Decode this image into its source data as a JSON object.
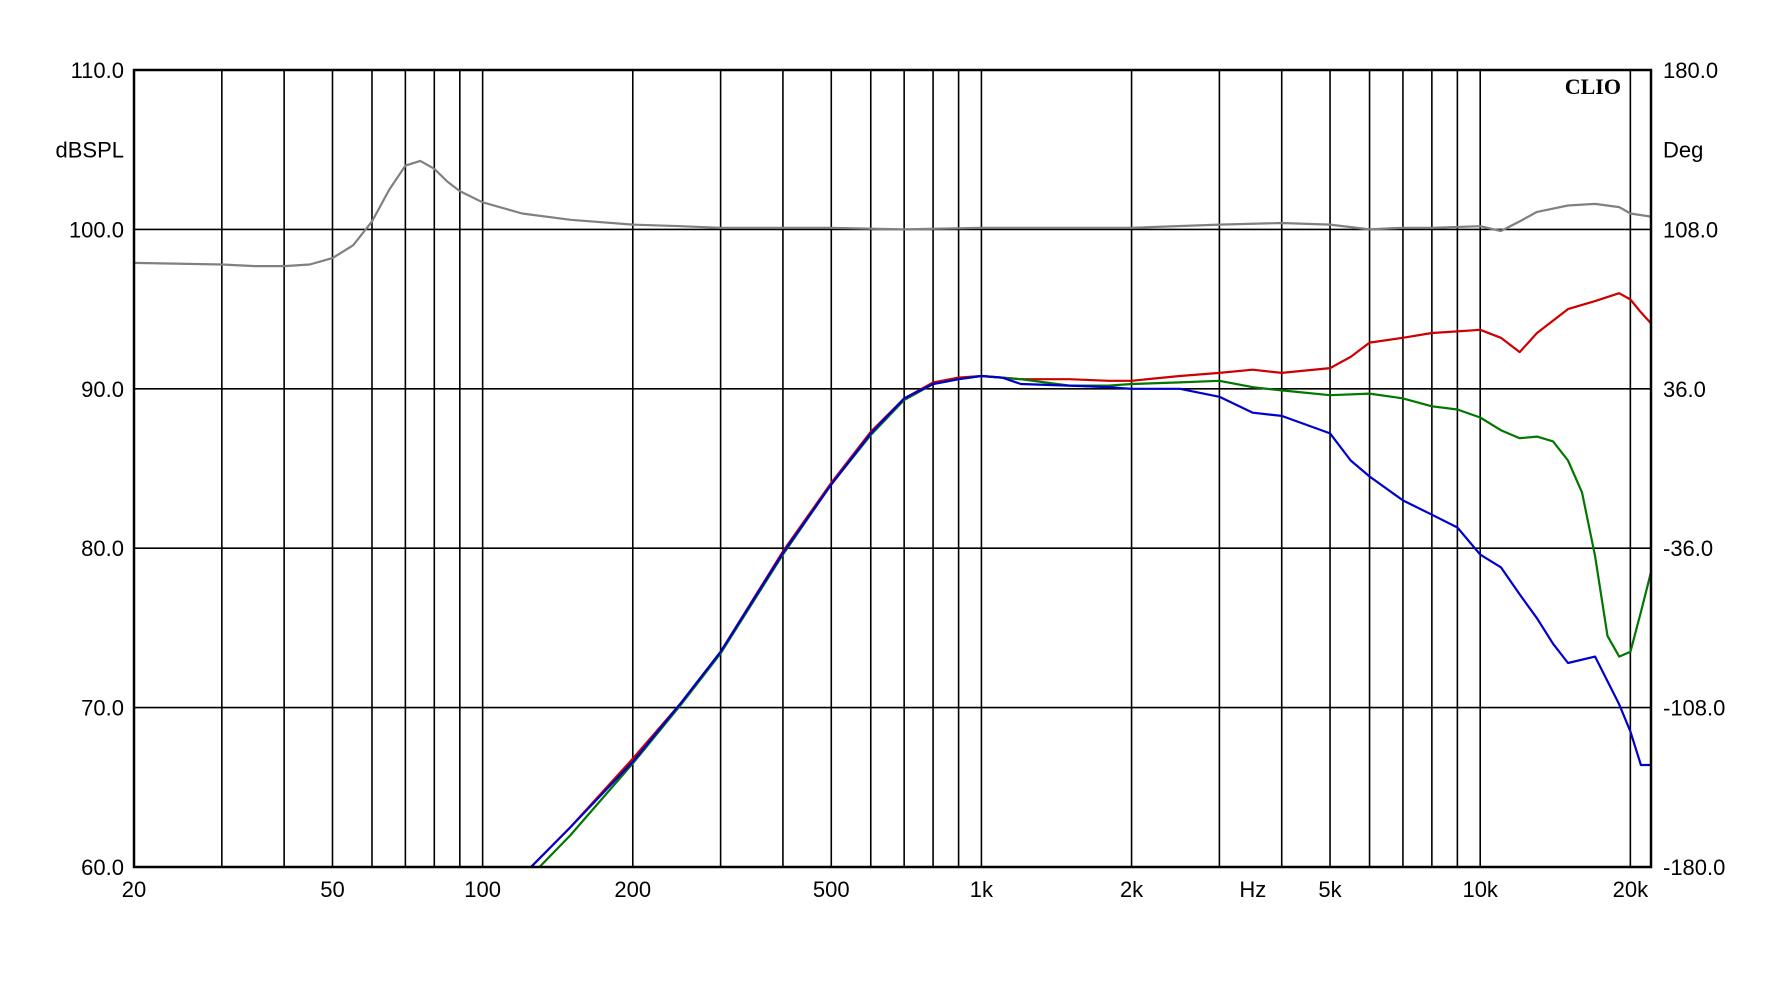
{
  "chart_data": {
    "type": "line",
    "brand": "CLIO",
    "x_scale": "log",
    "xlim": [
      20,
      22000
    ],
    "x_unit": "Hz",
    "xticks": [
      {
        "value": 20,
        "label": "20"
      },
      {
        "value": 50,
        "label": "50"
      },
      {
        "value": 100,
        "label": "100"
      },
      {
        "value": 200,
        "label": "200"
      },
      {
        "value": 500,
        "label": "500"
      },
      {
        "value": 1000,
        "label": "1k"
      },
      {
        "value": 2000,
        "label": "2k"
      },
      {
        "value": 5000,
        "label": "5k"
      },
      {
        "value": 10000,
        "label": "10k"
      },
      {
        "value": 20000,
        "label": "20k"
      }
    ],
    "x_gridlines": [
      20,
      30,
      40,
      50,
      60,
      70,
      80,
      90,
      100,
      200,
      300,
      400,
      500,
      600,
      700,
      800,
      900,
      1000,
      2000,
      3000,
      4000,
      5000,
      6000,
      7000,
      8000,
      9000,
      10000,
      20000
    ],
    "ylim": [
      60,
      110
    ],
    "y_unit": "dBSPL",
    "yticks": [
      {
        "value": 110,
        "label": "110.0"
      },
      {
        "value": 100,
        "label": "100.0"
      },
      {
        "value": 90,
        "label": "90.0"
      },
      {
        "value": 80,
        "label": "80.0"
      },
      {
        "value": 70,
        "label": "70.0"
      },
      {
        "value": 60,
        "label": "60.0"
      }
    ],
    "y2lim": [
      -180,
      180
    ],
    "y2_unit": "Deg",
    "y2ticks": [
      {
        "value": 180,
        "label": "180.0"
      },
      {
        "value": 108,
        "label": "108.0"
      },
      {
        "value": 36,
        "label": "36.0"
      },
      {
        "value": -36,
        "label": "-36.0"
      },
      {
        "value": -108,
        "label": "-108.0"
      },
      {
        "value": -180,
        "label": "-180.0"
      }
    ],
    "grid": true,
    "series": [
      {
        "color": "#808080",
        "x": [
          20,
          30,
          35,
          40,
          45,
          50,
          55,
          60,
          65,
          70,
          75,
          80,
          85,
          90,
          100,
          120,
          150,
          200,
          250,
          300,
          500,
          700,
          1000,
          1500,
          2000,
          3000,
          4000,
          5000,
          6000,
          7000,
          8000,
          10000,
          11000,
          12000,
          13000,
          15000,
          17000,
          19000,
          20000,
          22000
        ],
        "y": [
          97.9,
          97.8,
          97.7,
          97.7,
          97.8,
          98.2,
          99.0,
          100.5,
          102.5,
          104.0,
          104.3,
          103.8,
          103.0,
          102.4,
          101.7,
          101.0,
          100.6,
          100.3,
          100.2,
          100.1,
          100.1,
          100.0,
          100.1,
          100.1,
          100.1,
          100.3,
          100.4,
          100.3,
          100.0,
          100.1,
          100.1,
          100.2,
          99.9,
          100.5,
          101.1,
          101.5,
          101.6,
          101.4,
          101.0,
          100.8
        ]
      },
      {
        "color": "#cc0000",
        "x": [
          125,
          150,
          200,
          250,
          300,
          400,
          500,
          600,
          700,
          800,
          900,
          1000,
          1200,
          1500,
          1800,
          2000,
          2500,
          3000,
          3500,
          4000,
          5000,
          5500,
          6000,
          7000,
          8000,
          9000,
          10000,
          11000,
          12000,
          13000,
          15000,
          17000,
          19000,
          20000,
          21000,
          22000
        ],
        "y": [
          60.0,
          62.5,
          66.8,
          70.3,
          73.5,
          79.8,
          84.1,
          87.3,
          89.4,
          90.4,
          90.7,
          90.8,
          90.6,
          90.6,
          90.5,
          90.5,
          90.8,
          91.0,
          91.2,
          91.0,
          91.3,
          92.0,
          92.9,
          93.2,
          93.5,
          93.6,
          93.7,
          93.2,
          92.3,
          93.5,
          95.0,
          95.5,
          96.0,
          95.6,
          94.8,
          94.1
        ]
      },
      {
        "color": "#007700",
        "x": [
          130,
          150,
          200,
          250,
          300,
          400,
          500,
          600,
          700,
          800,
          900,
          1000,
          1200,
          1500,
          1800,
          2000,
          2500,
          3000,
          3500,
          4000,
          5000,
          6000,
          7000,
          8000,
          9000,
          10000,
          11000,
          12000,
          13000,
          14000,
          15000,
          16000,
          17000,
          18000,
          19000,
          20000,
          21000,
          22000
        ],
        "y": [
          60.0,
          62.0,
          66.5,
          70.2,
          73.4,
          79.6,
          84.0,
          87.1,
          89.3,
          90.3,
          90.6,
          90.8,
          90.6,
          90.2,
          90.2,
          90.3,
          90.4,
          90.5,
          90.1,
          89.9,
          89.6,
          89.7,
          89.4,
          88.9,
          88.7,
          88.2,
          87.4,
          86.9,
          87.0,
          86.7,
          85.5,
          83.5,
          79.5,
          74.5,
          73.2,
          73.5,
          76.0,
          78.5
        ]
      },
      {
        "color": "#0000cc",
        "x": [
          125,
          150,
          200,
          250,
          300,
          400,
          500,
          600,
          700,
          800,
          900,
          1000,
          1100,
          1200,
          1500,
          1800,
          2000,
          2500,
          3000,
          3500,
          4000,
          5000,
          5500,
          6000,
          7000,
          8000,
          9000,
          10000,
          11000,
          12000,
          13000,
          14000,
          15000,
          17000,
          19000,
          20000,
          21000,
          22000
        ],
        "y": [
          60.0,
          62.5,
          66.6,
          70.3,
          73.5,
          79.7,
          84.0,
          87.2,
          89.4,
          90.3,
          90.6,
          90.8,
          90.7,
          90.3,
          90.2,
          90.1,
          90.0,
          90.0,
          89.5,
          88.5,
          88.3,
          87.2,
          85.5,
          84.5,
          83.0,
          82.1,
          81.3,
          79.6,
          78.8,
          77.1,
          75.6,
          74.0,
          72.8,
          73.2,
          70.2,
          68.5,
          66.4,
          66.4
        ]
      }
    ]
  }
}
